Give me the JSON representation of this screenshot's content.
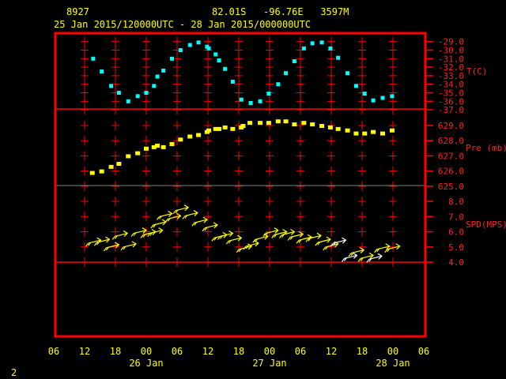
{
  "header": {
    "station_id": "8927",
    "location": "82.01S   -96.76E   3597M",
    "time_range": "25 Jan 2015/120000UTC - 28 Jan 2015/000000UTC"
  },
  "page_number": "2",
  "colors": {
    "frame": "#ff0000",
    "temperature": "#00ffff",
    "pressure": "#ffff00",
    "wind": "#ffff00",
    "wind_alt": "#ffffff",
    "divider_gray": "#808080",
    "text": "#ffff00"
  },
  "chart_data": {
    "type": "scatter",
    "x_axis": {
      "start": "2015-01-25 06:00",
      "end": "2015-01-28 06:00",
      "tick_labels": [
        "06",
        "12",
        "18",
        "00",
        "06",
        "12",
        "18",
        "00",
        "06",
        "12",
        "18",
        "00",
        "06"
      ],
      "date_labels": [
        {
          "label": "26 Jan",
          "at": "2015-01-26 00:00"
        },
        {
          "label": "27 Jan",
          "at": "2015-01-27 00:00"
        },
        {
          "label": "28 Jan",
          "at": "2015-01-28 00:00"
        }
      ]
    },
    "panels": [
      {
        "name": "T(C)",
        "ylim": [
          -37.0,
          -29.0
        ],
        "tick_labels": [
          "-29.0",
          "-30.0",
          "-31.0",
          "-32.0",
          "-33.0",
          "-34.0",
          "-35.0",
          "-36.0",
          "-37.0"
        ],
        "marker": "square",
        "points": [
          [
            "2015-01-25 13:40",
            -31.0
          ],
          [
            "2015-01-25 15:20",
            -32.5
          ],
          [
            "2015-01-25 17:10",
            -34.2
          ],
          [
            "2015-01-25 18:40",
            -35.0
          ],
          [
            "2015-01-25 20:30",
            -36.0
          ],
          [
            "2015-01-25 22:20",
            -35.4
          ],
          [
            "2015-01-26 00:00",
            -35.0
          ],
          [
            "2015-01-26 01:30",
            -34.2
          ],
          [
            "2015-01-26 02:10",
            -33.1
          ],
          [
            "2015-01-26 03:20",
            -32.4
          ],
          [
            "2015-01-26 05:00",
            -31.0
          ],
          [
            "2015-01-26 06:40",
            -30.0
          ],
          [
            "2015-01-26 08:30",
            -29.4
          ],
          [
            "2015-01-26 10:10",
            -29.1
          ],
          [
            "2015-01-26 11:50",
            -29.6
          ],
          [
            "2015-01-26 12:10",
            -29.8
          ],
          [
            "2015-01-26 13:30",
            -30.5
          ],
          [
            "2015-01-26 14:10",
            -31.2
          ],
          [
            "2015-01-26 15:20",
            -32.2
          ],
          [
            "2015-01-26 16:50",
            -33.7
          ],
          [
            "2015-01-26 18:30",
            -35.8
          ],
          [
            "2015-01-26 20:20",
            -36.2
          ],
          [
            "2015-01-26 22:10",
            -36.0
          ],
          [
            "2015-01-26 23:50",
            -35.1
          ],
          [
            "2015-01-27 01:40",
            -34.0
          ],
          [
            "2015-01-27 03:10",
            -32.7
          ],
          [
            "2015-01-27 04:50",
            -31.3
          ],
          [
            "2015-01-27 06:40",
            -29.8
          ],
          [
            "2015-01-27 08:20",
            -29.2
          ],
          [
            "2015-01-27 10:10",
            -29.1
          ],
          [
            "2015-01-27 11:50",
            -29.8
          ],
          [
            "2015-01-27 13:20",
            -30.9
          ],
          [
            "2015-01-27 15:10",
            -32.7
          ],
          [
            "2015-01-27 16:50",
            -34.2
          ],
          [
            "2015-01-27 18:30",
            -35.1
          ],
          [
            "2015-01-27 20:10",
            -35.9
          ],
          [
            "2015-01-27 22:00",
            -35.6
          ],
          [
            "2015-01-27 23:50",
            -35.4
          ]
        ]
      },
      {
        "name": "Pre (mb)",
        "ylim": [
          625.0,
          629.6
        ],
        "tick_labels": [
          "629.0",
          "628.0",
          "627.0",
          "626.0",
          "625.0"
        ],
        "marker": "square",
        "points": [
          [
            "2015-01-25 13:30",
            625.9
          ],
          [
            "2015-01-25 15:20",
            626.0
          ],
          [
            "2015-01-25 17:10",
            626.3
          ],
          [
            "2015-01-25 18:40",
            626.5
          ],
          [
            "2015-01-25 20:30",
            627.0
          ],
          [
            "2015-01-25 22:20",
            627.2
          ],
          [
            "2015-01-26 00:00",
            627.5
          ],
          [
            "2015-01-26 01:30",
            627.6
          ],
          [
            "2015-01-26 02:10",
            627.7
          ],
          [
            "2015-01-26 03:20",
            627.6
          ],
          [
            "2015-01-26 05:00",
            627.8
          ],
          [
            "2015-01-26 06:40",
            628.1
          ],
          [
            "2015-01-26 08:30",
            628.3
          ],
          [
            "2015-01-26 10:10",
            628.4
          ],
          [
            "2015-01-26 11:50",
            628.6
          ],
          [
            "2015-01-26 12:10",
            628.7
          ],
          [
            "2015-01-26 13:30",
            628.8
          ],
          [
            "2015-01-26 14:10",
            628.8
          ],
          [
            "2015-01-26 15:20",
            628.9
          ],
          [
            "2015-01-26 16:50",
            628.8
          ],
          [
            "2015-01-26 18:30",
            628.9
          ],
          [
            "2015-01-26 18:50",
            629.0
          ],
          [
            "2015-01-26 20:10",
            629.2
          ],
          [
            "2015-01-26 22:10",
            629.2
          ],
          [
            "2015-01-26 23:50",
            629.2
          ],
          [
            "2015-01-27 01:40",
            629.3
          ],
          [
            "2015-01-27 03:10",
            629.3
          ],
          [
            "2015-01-27 04:50",
            629.1
          ],
          [
            "2015-01-27 06:40",
            629.2
          ],
          [
            "2015-01-27 08:20",
            629.1
          ],
          [
            "2015-01-27 10:10",
            629.0
          ],
          [
            "2015-01-27 11:50",
            628.9
          ],
          [
            "2015-01-27 13:20",
            628.8
          ],
          [
            "2015-01-27 15:10",
            628.7
          ],
          [
            "2015-01-27 16:50",
            628.5
          ],
          [
            "2015-01-27 18:30",
            628.5
          ],
          [
            "2015-01-27 20:10",
            628.6
          ],
          [
            "2015-01-27 22:00",
            628.5
          ],
          [
            "2015-01-27 23:50",
            628.7
          ]
        ]
      },
      {
        "name": "SPD(MPS)",
        "ylim": [
          4.0,
          8.0
        ],
        "tick_labels": [
          "8.0",
          "7.0",
          "6.0",
          "5.0",
          "4.0"
        ],
        "marker": "wind-arrow",
        "points": [
          [
            "2015-01-25 15:10",
            5.45,
            "#ffff00"
          ],
          [
            "2015-01-25 16:50",
            5.5,
            "#ffff00"
          ],
          [
            "2015-01-25 18:40",
            5.15,
            "#ffff00"
          ],
          [
            "2015-01-25 20:20",
            5.9,
            "#ffff00"
          ],
          [
            "2015-01-25 22:00",
            5.2,
            "#ffff00"
          ],
          [
            "2015-01-26 00:00",
            6.1,
            "#ffff00"
          ],
          [
            "2015-01-26 01:50",
            6.0,
            "#ffff00"
          ],
          [
            "2015-01-26 03:10",
            6.1,
            "#ffff00"
          ],
          [
            "2015-01-26 03:50",
            6.65,
            "#ffff00"
          ],
          [
            "2015-01-26 05:00",
            7.2,
            "#ffff00"
          ],
          [
            "2015-01-26 06:40",
            7.05,
            "#ffff00"
          ],
          [
            "2015-01-26 08:10",
            7.6,
            "#ffff00"
          ],
          [
            "2015-01-26 10:00",
            7.25,
            "#ffff00"
          ],
          [
            "2015-01-26 11:50",
            6.8,
            "#ffff00"
          ],
          [
            "2015-01-26 13:50",
            6.45,
            "#ffff00"
          ],
          [
            "2015-01-26 15:40",
            5.8,
            "#ffff00"
          ],
          [
            "2015-01-26 16:50",
            5.9,
            "#ffff00"
          ],
          [
            "2015-01-26 18:30",
            5.6,
            "#ffff00"
          ],
          [
            "2015-01-26 20:30",
            5.05,
            "#ffff00"
          ],
          [
            "2015-01-26 21:50",
            5.25,
            "#ffff00"
          ],
          [
            "2015-01-26 23:40",
            5.7,
            "#ffff00"
          ],
          [
            "2015-01-27 01:40",
            6.1,
            "#ffff00"
          ],
          [
            "2015-01-27 03:20",
            6.0,
            "#ffff00"
          ],
          [
            "2015-01-27 04:50",
            6.0,
            "#ffff00"
          ],
          [
            "2015-01-27 06:30",
            5.85,
            "#ffff00"
          ],
          [
            "2015-01-27 08:10",
            5.65,
            "#ffff00"
          ],
          [
            "2015-01-27 10:00",
            5.75,
            "#ffff00"
          ],
          [
            "2015-01-27 11:50",
            5.5,
            "#ffff00"
          ],
          [
            "2015-01-27 13:20",
            5.2,
            "#ffff00"
          ],
          [
            "2015-01-27 14:50",
            5.45,
            "#ffffff"
          ],
          [
            "2015-01-27 17:00",
            4.45,
            "#ffffff"
          ],
          [
            "2015-01-27 18:20",
            4.8,
            "#ffff00"
          ],
          [
            "2015-01-27 20:10",
            4.45,
            "#ffff00"
          ],
          [
            "2015-01-27 21:50",
            4.4,
            "#ffffff"
          ],
          [
            "2015-01-27 23:20",
            5.05,
            "#ffff00"
          ],
          [
            "2015-01-28 01:20",
            5.05,
            "#ffff00"
          ]
        ]
      }
    ]
  }
}
